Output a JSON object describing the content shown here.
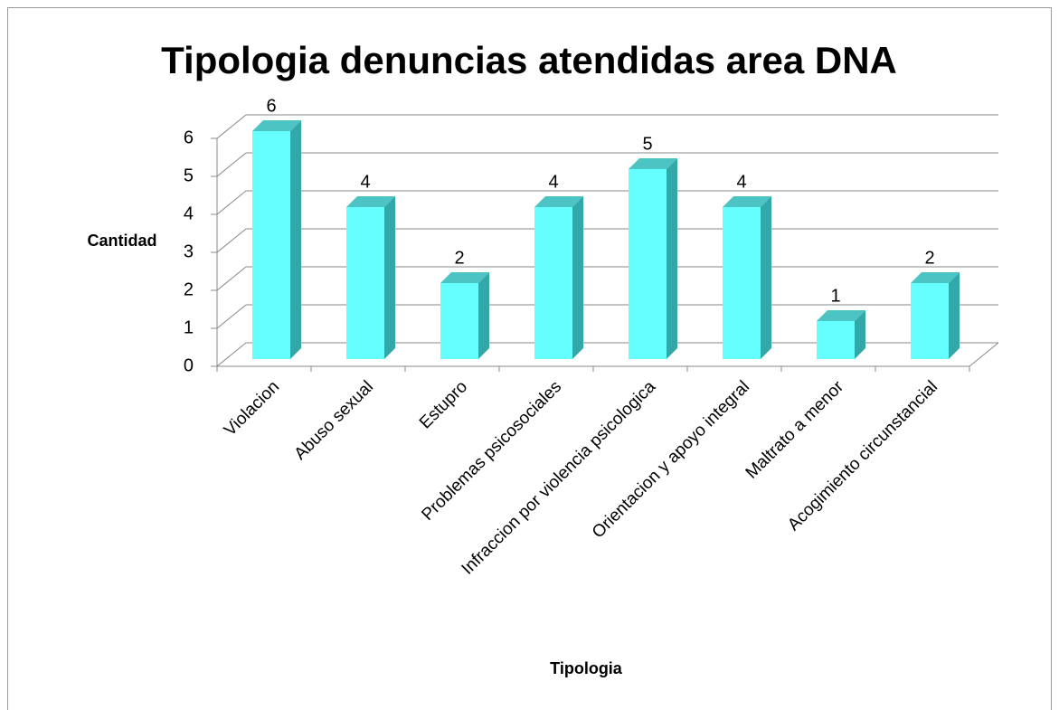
{
  "chart_data": {
    "type": "bar3d",
    "title": "Tipologia denuncias atendidas area DNA",
    "x_label": "Tipologia",
    "y_label": "Cantidad",
    "categories": [
      "Violacion",
      "Abuso sexual",
      "Estupro",
      "Problemas psicosociales",
      "Infraccion por violencia psicologica",
      "Orientacion y apoyo integral",
      "Maltrato a menor",
      "Acogimiento circunstancial"
    ],
    "values": [
      6,
      4,
      2,
      4,
      5,
      4,
      1,
      2
    ],
    "color": "#66ffff",
    "ylim": [
      0,
      6
    ],
    "yticks": [
      0,
      1,
      2,
      3,
      4,
      5,
      6
    ],
    "grid": true
  }
}
